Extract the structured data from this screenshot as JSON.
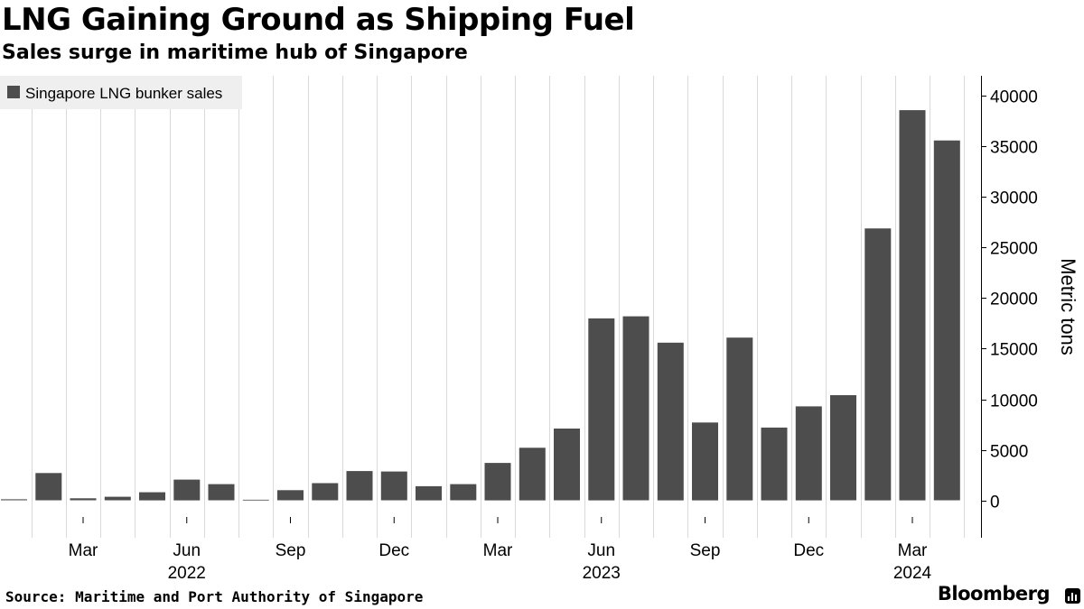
{
  "header": {
    "title": "LNG Gaining Ground as Shipping Fuel",
    "subtitle": "Sales surge in maritime hub of Singapore"
  },
  "footer": {
    "source": "Source: Maritime and Port Authority of Singapore",
    "brand": "Bloomberg"
  },
  "colors": {
    "bar": "#4d4d4d",
    "grid": "#d9d9d9",
    "legend_bg": "#efefef"
  },
  "chart_data": {
    "type": "bar",
    "categories": [
      "2022-01",
      "2022-02",
      "2022-03",
      "2022-04",
      "2022-05",
      "2022-06",
      "2022-07",
      "2022-08",
      "2022-09",
      "2022-10",
      "2022-11",
      "2022-12",
      "2023-01",
      "2023-02",
      "2023-03",
      "2023-04",
      "2023-05",
      "2023-06",
      "2023-07",
      "2023-08",
      "2023-09",
      "2023-10",
      "2023-11",
      "2023-12",
      "2024-01",
      "2024-02",
      "2024-03",
      "2024-04"
    ],
    "series": [
      {
        "name": "Singapore LNG bunker sales",
        "values": [
          100,
          2700,
          200,
          350,
          800,
          2050,
          1600,
          60,
          1000,
          1700,
          2900,
          2850,
          1400,
          1600,
          3700,
          5200,
          7100,
          18000,
          18200,
          15600,
          7700,
          16100,
          7200,
          9300,
          10400,
          26900,
          38600,
          35600
        ]
      }
    ],
    "xaxis": {
      "month_ticks": [
        {
          "label": "Mar",
          "index": 2
        },
        {
          "label": "Jun",
          "index": 5
        },
        {
          "label": "Sep",
          "index": 8
        },
        {
          "label": "Dec",
          "index": 11
        },
        {
          "label": "Mar",
          "index": 14
        },
        {
          "label": "Jun",
          "index": 17
        },
        {
          "label": "Sep",
          "index": 20
        },
        {
          "label": "Dec",
          "index": 23
        },
        {
          "label": "Mar",
          "index": 26
        }
      ],
      "year_labels": [
        {
          "label": "2022",
          "index": 5
        },
        {
          "label": "2023",
          "index": 17
        },
        {
          "label": "2024",
          "index": 26
        }
      ]
    },
    "yaxis": {
      "label": "Metric tons",
      "ticks": [
        0,
        5000,
        10000,
        15000,
        20000,
        25000,
        30000,
        35000,
        40000
      ],
      "ylim": [
        -3700,
        42000
      ],
      "position": "right"
    },
    "grid": "vertical",
    "legend": "top-left"
  }
}
